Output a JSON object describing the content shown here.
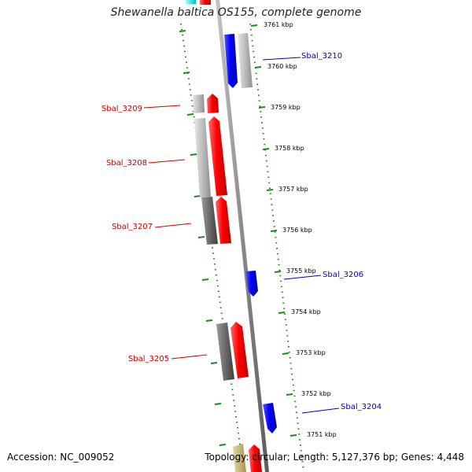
{
  "title": "Shewanella baltica OS155, complete genome",
  "footer": {
    "accession": "Accession: NC_009052",
    "topology": "Topology: circular; Length: 5,127,376 bp; Genes: 4,448"
  },
  "colors": {
    "forward_gene": "#ff0000",
    "reverse_gene": "#0000ff",
    "grey_light": "#bdbdbd",
    "grey_dark": "#6a6a6a",
    "cyan": "#00e5e5",
    "tan": "#c8b46e",
    "backbone": "#8a8a8a",
    "tick": "#1a8a1a",
    "label_forward": "#cc0000",
    "label_reverse": "#0000cc"
  },
  "ticks": [
    {
      "kbp": 3761,
      "label": "3761 kbp"
    },
    {
      "kbp": 3760,
      "label": "3760 kbp"
    },
    {
      "kbp": 3759,
      "label": "3759 kbp"
    },
    {
      "kbp": 3758,
      "label": "3758 kbp"
    },
    {
      "kbp": 3757,
      "label": "3757 kbp"
    },
    {
      "kbp": 3756,
      "label": "3756 kbp"
    },
    {
      "kbp": 3755,
      "label": "3755 kbp"
    },
    {
      "kbp": 3754,
      "label": "3754 kbp"
    },
    {
      "kbp": 3753,
      "label": "3753 kbp"
    },
    {
      "kbp": 3752,
      "label": "3752 kbp"
    },
    {
      "kbp": 3751,
      "label": "3751 kbp"
    }
  ],
  "gene_labels": [
    {
      "name": "Sbal_3210",
      "strand": "reverse"
    },
    {
      "name": "Sbal_3209",
      "strand": "forward"
    },
    {
      "name": "Sbal_3208",
      "strand": "forward"
    },
    {
      "name": "Sbal_3207",
      "strand": "forward"
    },
    {
      "name": "Sbal_3206",
      "strand": "reverse"
    },
    {
      "name": "Sbal_3205",
      "strand": "forward"
    },
    {
      "name": "Sbal_3204",
      "strand": "reverse"
    }
  ]
}
